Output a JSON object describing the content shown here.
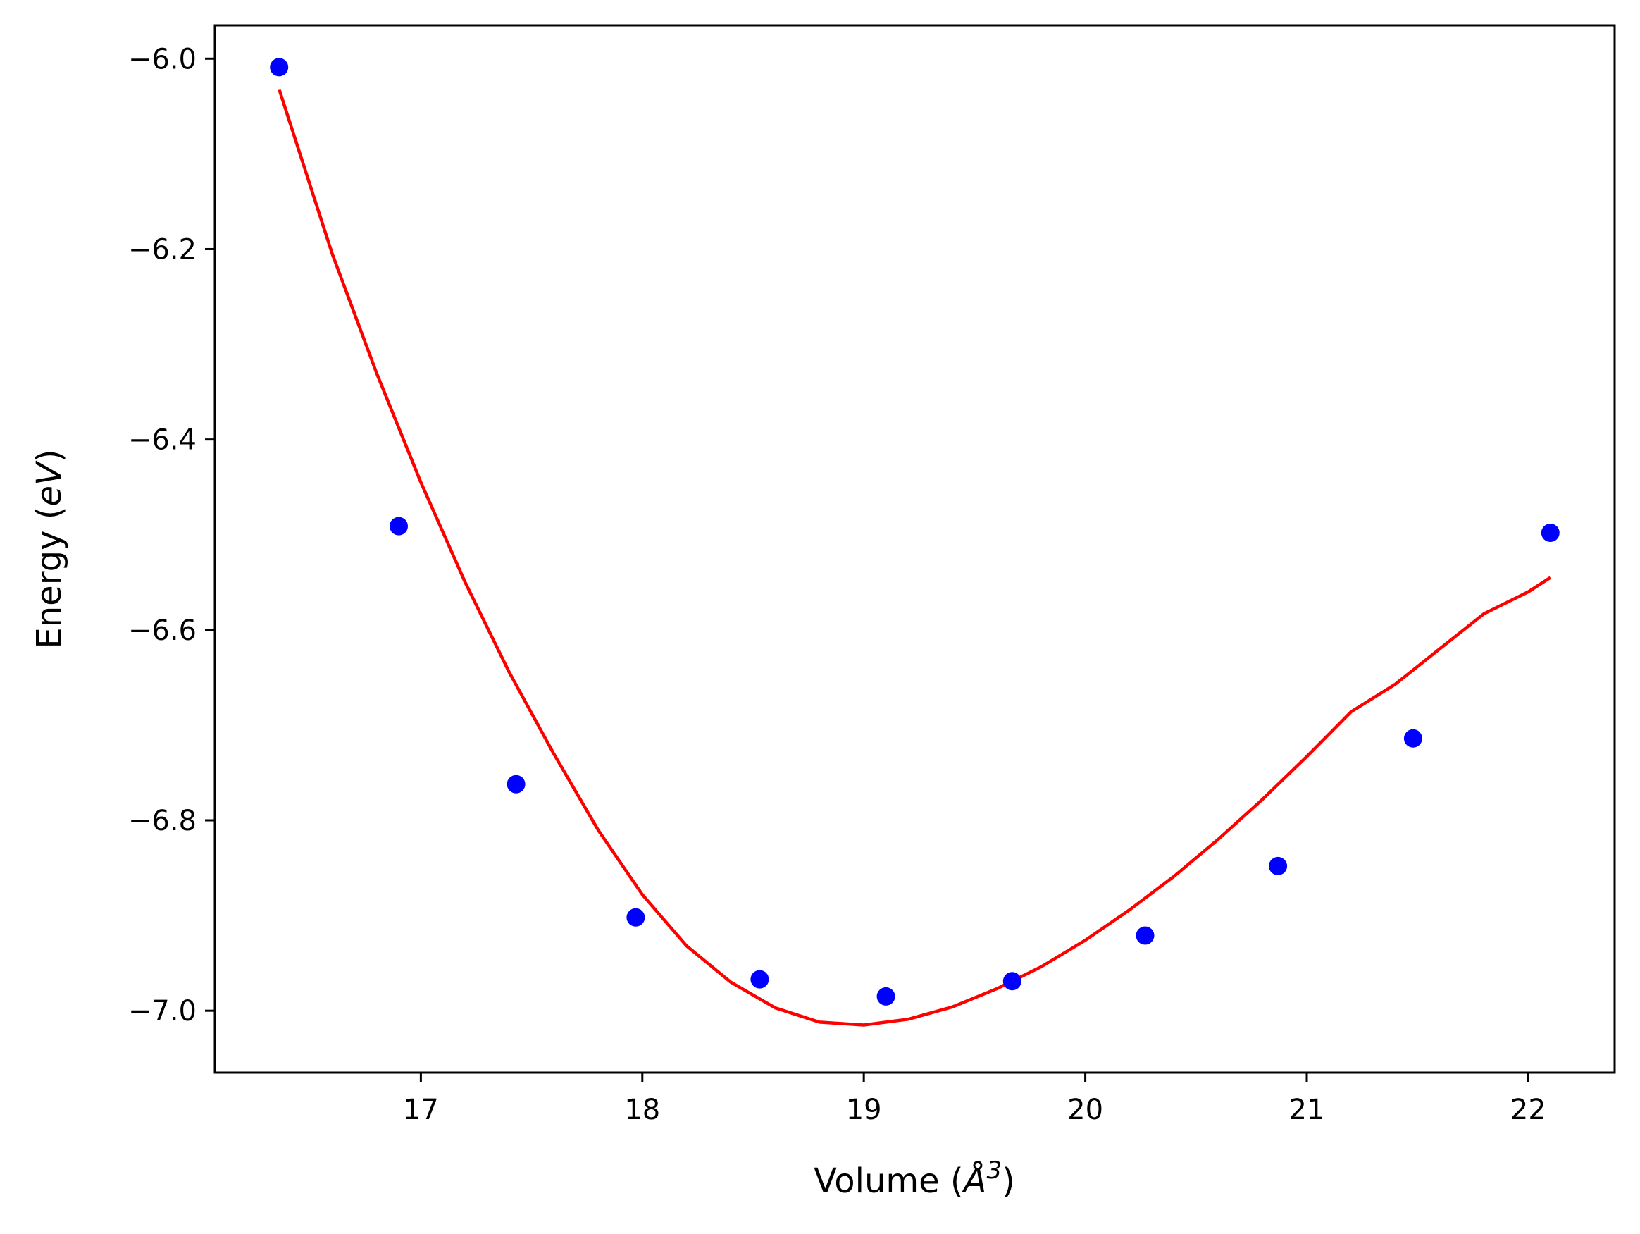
{
  "chart_data": {
    "type": "scatter",
    "title": "",
    "xlabel": {
      "prefix": "Volume (",
      "symbol": "Å",
      "sup": "3",
      "suffix": ")"
    },
    "ylabel": {
      "prefix": "Energy (",
      "unit": "eV",
      "suffix": ")"
    },
    "xlim": [
      16.07,
      22.39
    ],
    "ylim": [
      -7.065,
      -5.965
    ],
    "xticks": [
      17,
      18,
      19,
      20,
      21,
      22
    ],
    "xtick_labels": [
      "17",
      "18",
      "19",
      "20",
      "21",
      "22"
    ],
    "yticks": [
      -6.0,
      -6.2,
      -6.4,
      -6.6,
      -6.8,
      -7.0
    ],
    "ytick_labels": [
      "−6.0",
      "−6.2",
      "−6.4",
      "−6.6",
      "−6.8",
      "−7.0"
    ],
    "grid": false,
    "legend": "none",
    "series": [
      {
        "kind": "points",
        "color": "#0000ff",
        "x": [
          16.36,
          16.9,
          17.43,
          17.97,
          18.53,
          19.1,
          19.67,
          20.27,
          20.87,
          21.48,
          22.1
        ],
        "y": [
          -6.009,
          -6.491,
          -6.762,
          -6.902,
          -6.967,
          -6.985,
          -6.969,
          -6.921,
          -6.848,
          -6.714,
          -6.498
        ]
      },
      {
        "kind": "line",
        "color": "#ff0000",
        "x": [
          16.36,
          16.6,
          16.8,
          17.0,
          17.2,
          17.4,
          17.6,
          17.8,
          18.0,
          18.2,
          18.4,
          18.6,
          18.8,
          19.0,
          19.2,
          19.4,
          19.6,
          19.8,
          20.0,
          20.2,
          20.4,
          20.6,
          20.8,
          21.0,
          21.2,
          21.4,
          21.6,
          21.8,
          22.0,
          22.1
        ],
        "y": [
          -6.032,
          -6.205,
          -6.33,
          -6.445,
          -6.55,
          -6.645,
          -6.73,
          -6.81,
          -6.878,
          -6.932,
          -6.97,
          -6.997,
          -7.012,
          -7.015,
          -7.009,
          -6.996,
          -6.977,
          -6.954,
          -6.926,
          -6.894,
          -6.859,
          -6.82,
          -6.778,
          -6.733,
          -6.686,
          -6.657,
          -6.62,
          -6.583,
          -6.56,
          -6.545
        ]
      }
    ]
  }
}
